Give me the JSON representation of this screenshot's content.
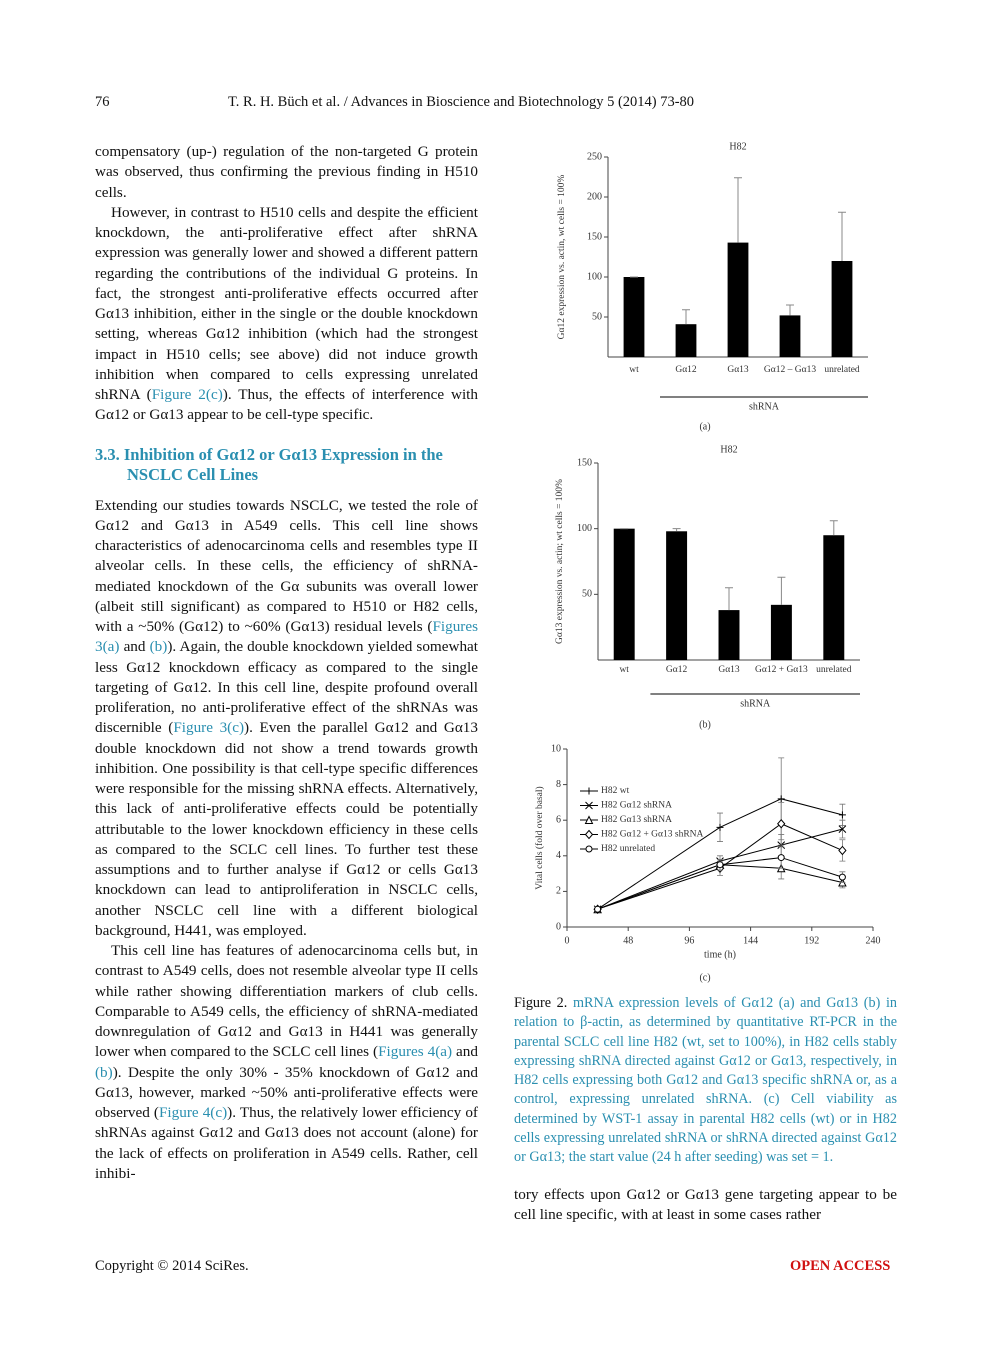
{
  "header": {
    "page_number": "76",
    "citation": "T. R. H. Büch et al. / Advances in Bioscience and Biotechnology 5 (2014) 73-80"
  },
  "section_end": [
    "compensatory (up-) regulation of the non-targeted G protein was observed, thus confirming the previous finding in H510 cells.",
    [
      "However, in contrast to H510 cells and despite the efficient knockdown, the anti-proliferative effect after shRNA expression was generally lower and showed a different pattern regarding the contributions of the individual G proteins. In fact, the strongest anti-proliferative effects occurred after Gα13 inhibition, either in the single or the double knockdown setting, whereas Gα12 inhibition (which had the strongest impact in H510 cells; see above) did not induce growth inhibition when compared to cells expressing unrelated shRNA (",
      "Figure 2(c)",
      "). Thus, the effects of interference with Gα12 or Gα13 appear to be cell-type specific."
    ]
  ],
  "section_3_3": {
    "heading": "3.3. Inhibition of Gα12 or Gα13 Expression in the NSCLC Cell Lines",
    "paragraphs": [
      [
        "Extending our studies towards NSCLC, we tested the role of Gα12 and Gα13 in A549 cells. This cell line shows characteristics of adenocarcinoma cells and resembles type II alveolar cells. In these cells, the efficiency of shRNA-mediated knockdown of the Gα subunits was overall lower (albeit still significant) as compared to H510 or H82 cells, with a ~50% (Gα12) to ~60% (Gα13) residual levels (",
        "Figures 3(a)",
        " and ",
        "(b)",
        "). Again, the double knockdown yielded somewhat less Gα12 knockdown efficacy as compared to the single targeting of Gα12. In this cell line, despite profound overall proliferation, no anti-proliferative effect of the shRNAs was discernible (",
        "Figure 3(c)",
        "). Even the parallel Gα12 and Gα13 double knockdown did not show a trend towards growth inhibition. One possibility is that cell-type specific differences were responsible for the missing shRNA effects. Alternatively, this lack of anti-proliferative effects could be potentially attributable to the lower knockdown efficiency in these cells as compared to the SCLC cell lines. To further test these assumptions and to further analyse if Gα12 or cells Gα13 knockdown can lead to antiproliferation in NSCLC cells, another NSCLC cell line with a different biological background, H441, was employed."
      ],
      [
        "This cell line has features of adenocarcinoma cells but, in contrast to A549 cells, does not resemble alveolar type II cells while rather showing differentiation markers of club cells. Comparable to A549 cells, the efficiency of shRNA-mediated downregulation of Gα12 and Gα13 in H441 was generally lower when compared to the SCLC cell lines (",
        "Figures 4(a)",
        " and ",
        "(b)",
        "). Despite the only 30% - 35% knockdown of Gα12 and Gα13, however, marked ~50% anti-proliferative effects were observed (",
        "Figure 4(c)",
        "). Thus, the relatively lower efficiency of shRNAs against Gα12 and Gα13 does not account (alone) for the lack of effects on proliferation in A549 cells. Rather, cell inhibi-"
      ]
    ]
  },
  "chart_data": [
    {
      "type": "bar",
      "title": "H82",
      "ylabel": "Gα12 expression vs. actin, wt cells = 100%",
      "categories": [
        "wt",
        "Gα12",
        "Gα13",
        "Gα12 – Gα13",
        "unrelated"
      ],
      "values": [
        100,
        41,
        143,
        52,
        120
      ],
      "errors": [
        0,
        18,
        81,
        13,
        61
      ],
      "color": "#000000",
      "ylim": [
        0,
        250
      ],
      "yticks": [
        50,
        100,
        150,
        200,
        250
      ],
      "xlabel": "shRNA",
      "caption": "(a)"
    },
    {
      "type": "bar",
      "title": "H82",
      "ylabel": "Gα13 expression vs. actin; wt cells = 100%",
      "categories": [
        "wt",
        "Gα12",
        "Gα13",
        "Gα12 + Gα13",
        "unrelated"
      ],
      "values": [
        100,
        98,
        38,
        42,
        95
      ],
      "errors": [
        0,
        2,
        17,
        21,
        11
      ],
      "color": "#000000",
      "ylim": [
        0,
        150
      ],
      "yticks": [
        50,
        100,
        150
      ],
      "xlabel": "shRNA",
      "caption": "(b)"
    },
    {
      "type": "line",
      "ylabel": "Vital cells (fold over basal)",
      "xlabel": "time (h)",
      "x": [
        24,
        120,
        168,
        216
      ],
      "xlim": [
        0,
        240
      ],
      "xticks": [
        0,
        48,
        96,
        144,
        192,
        240
      ],
      "ylim": [
        0,
        10
      ],
      "yticks": [
        0,
        2,
        4,
        6,
        8,
        10
      ],
      "caption": "(c)",
      "series": [
        {
          "name": "H82 wt",
          "marker": "plus",
          "color": "#000000",
          "values": [
            1,
            5.6,
            7.2,
            6.3
          ],
          "errors": [
            0,
            0.8,
            2.3,
            0.6
          ]
        },
        {
          "name": "H82 Gα12 shRNA",
          "marker": "x",
          "color": "#000000",
          "values": [
            1,
            3.7,
            4.6,
            5.5
          ],
          "errors": [
            0,
            0.3,
            0.6,
            0.5
          ]
        },
        {
          "name": "H82 Gα13 shRNA",
          "marker": "triangle",
          "color": "#000000",
          "values": [
            1,
            3.5,
            3.3,
            2.5
          ],
          "errors": [
            0,
            0.3,
            0.6,
            0.3
          ]
        },
        {
          "name": "H82 Gα12 + Gα13 shRNA",
          "marker": "diamond",
          "color": "#000000",
          "values": [
            1,
            3.3,
            5.8,
            4.3
          ],
          "errors": [
            0,
            0.4,
            1.2,
            0.6
          ]
        },
        {
          "name": "H82 unrelated",
          "marker": "circle",
          "color": "#000000",
          "values": [
            1,
            3.5,
            3.9,
            2.8
          ],
          "errors": [
            0,
            0.3,
            0.6,
            0.3
          ]
        }
      ]
    }
  ],
  "figure_caption": [
    "Figure 2.",
    " mRNA expression levels of Gα12 (a) and Gα13 (b) in relation to β-actin, as determined by quantitative RT-PCR in the parental SCLC cell line H82 (wt, set to 100%), in H82 cells stably expressing shRNA directed against Gα12 or Gα13, respectively, in H82 cells expressing both Gα12 and Gα13 specific shRNA or, as a control, expressing unrelated shRNA. (c) Cell viability as determined by WST-1 assay in parental H82 cells (wt) or in H82 cells expressing unrelated shRNA or shRNA directed against Gα12 or Gα13; the start value (24 h after seeding) was set = 1."
  ],
  "right_column_text": "tory effects upon Gα12 or Gα13 gene targeting appear to be cell line specific, with at least in some cases rather",
  "footer": {
    "copyright": "Copyright © 2014 SciRes.",
    "access": "OPEN ACCESS"
  }
}
